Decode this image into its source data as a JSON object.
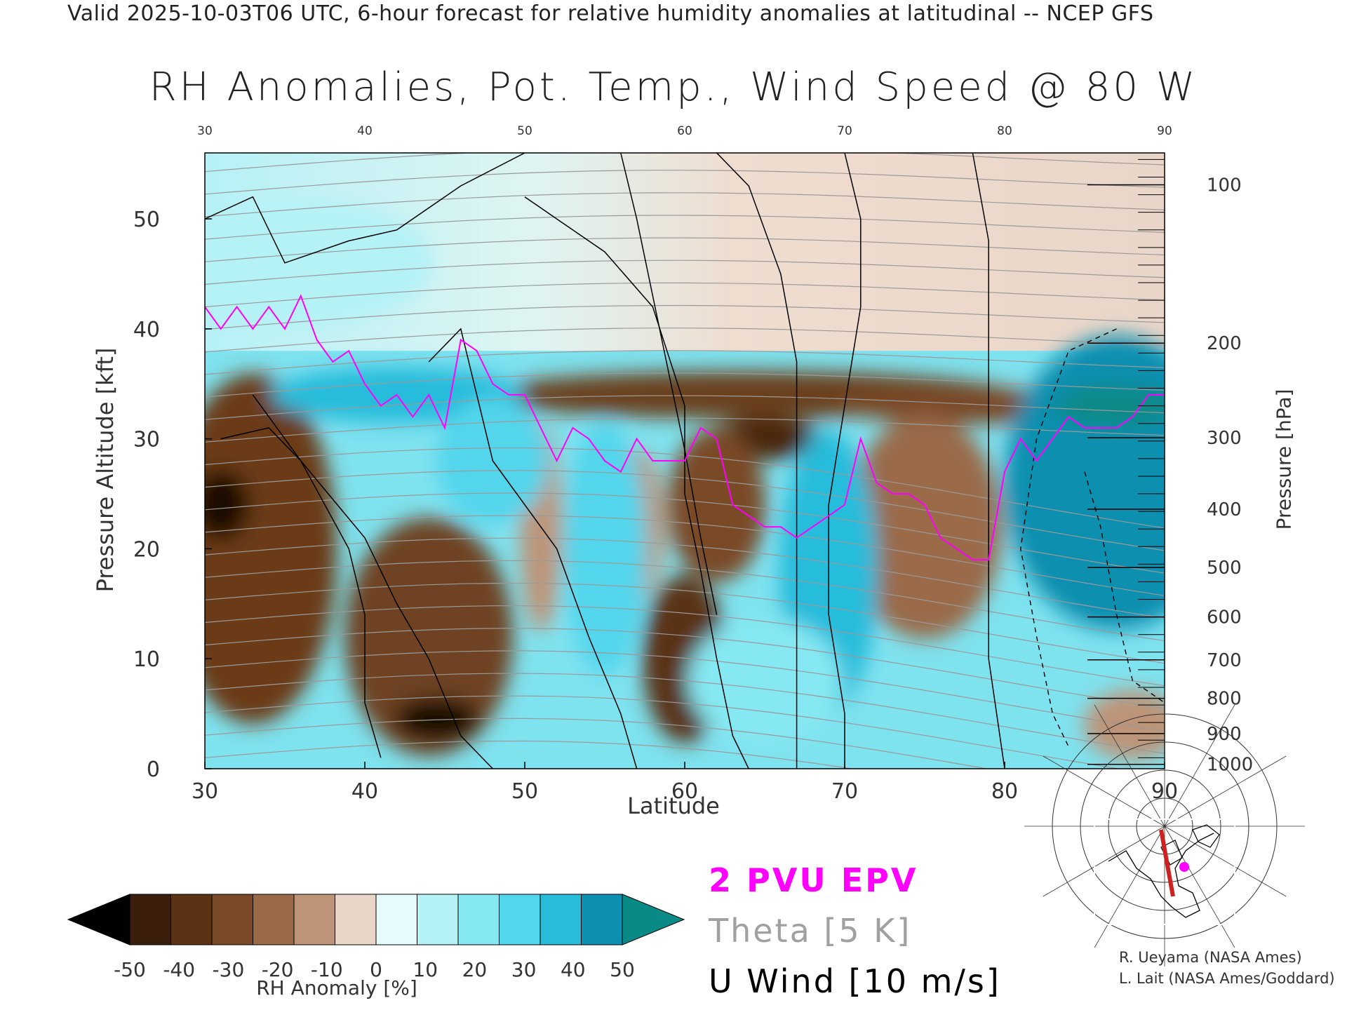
{
  "header": {
    "line": "Valid 2025-10-03T06 UTC, 6-hour forecast for relative humidity anomalies at latitudinal -- NCEP GFS"
  },
  "chart_data": {
    "type": "heatmap",
    "title": "RH Anomalies, Pot. Temp., Wind Speed @ 80 W",
    "xlabel": "Latitude",
    "ylabel": "Pressure Altitude [kft]",
    "y2label": "Pressure [hPa]",
    "xlim": [
      30,
      90
    ],
    "ylim": [
      0,
      56
    ],
    "x_ticks": [
      30,
      40,
      50,
      60,
      70,
      80,
      90
    ],
    "y_ticks": [
      0,
      10,
      20,
      30,
      40,
      50
    ],
    "pressure_ticks": [
      {
        "label": "100",
        "kft": 53.1
      },
      {
        "label": "200",
        "kft": 38.7
      },
      {
        "label": "300",
        "kft": 30.1
      },
      {
        "label": "400",
        "kft": 23.6
      },
      {
        "label": "500",
        "kft": 18.3
      },
      {
        "label": "600",
        "kft": 13.8
      },
      {
        "label": "700",
        "kft": 9.9
      },
      {
        "label": "800",
        "kft": 6.4
      },
      {
        "label": "900",
        "kft": 3.2
      },
      {
        "label": "1000",
        "kft": 0.4
      }
    ],
    "colorbar": {
      "title": "RH Anomaly [%]",
      "ticks": [
        "-50",
        "-40",
        "-30",
        "-20",
        "-10",
        "0",
        "10",
        "20",
        "30",
        "40",
        "50"
      ],
      "colors": [
        "#000000",
        "#3a1d0a",
        "#5c3214",
        "#7a4a28",
        "#9a6a48",
        "#bd9478",
        "#e8d6c8",
        "#e6fbfb",
        "#b4f2f6",
        "#86e8f2",
        "#52d6ec",
        "#28bcdb",
        "#0c8fb0",
        "#0a8a86"
      ]
    },
    "legend": {
      "epv": "2 PVU EPV",
      "theta": "Theta [5 K]",
      "u_wind": "U Wind [10 m/s]",
      "colors": {
        "epv": "#ff00ff",
        "theta": "#a0a0a0",
        "u_wind": "#000000"
      }
    },
    "epv_2pvu_line": {
      "lat": [
        30,
        31,
        32,
        33,
        34,
        35,
        36,
        37,
        38,
        39,
        40,
        41,
        42,
        43,
        44,
        45,
        46,
        47,
        48,
        49,
        50,
        51,
        52,
        53,
        54,
        55,
        56,
        57,
        58,
        59,
        60,
        61,
        62,
        63,
        64,
        65,
        66,
        67,
        68,
        69,
        70,
        71,
        72,
        73,
        74,
        75,
        76,
        77,
        78,
        79,
        80,
        81,
        82,
        83,
        84,
        85,
        86,
        87,
        88,
        89,
        90
      ],
      "kft": [
        42,
        40,
        42,
        40,
        42,
        40,
        43,
        39,
        37,
        38,
        35,
        33,
        34,
        32,
        34,
        31,
        39,
        38,
        35,
        34,
        34,
        31,
        28,
        31,
        30,
        28,
        27,
        30,
        28,
        28,
        28,
        31,
        30,
        24,
        23,
        22,
        22,
        21,
        22,
        23,
        24,
        30,
        26,
        25,
        25,
        24,
        21,
        20,
        19,
        19,
        27,
        30,
        28,
        30,
        32,
        31,
        31,
        31,
        32,
        34,
        34
      ]
    },
    "theta_levels_K": [
      280,
      290,
      300,
      310,
      320,
      330,
      340,
      350,
      360,
      370,
      380,
      390,
      400,
      410,
      420
    ],
    "u_wind_contour_labels": [
      "0",
      "10",
      "30"
    ]
  },
  "credits": {
    "line1": "R. Ueyama (NASA Ames)",
    "line2": "L. Lait (NASA Ames/Goddard)"
  },
  "locator_map": {
    "track_color": "#cc2222",
    "marker_color": "#ff00ff"
  }
}
